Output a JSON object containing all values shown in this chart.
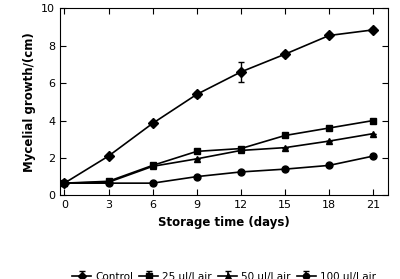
{
  "x": [
    0,
    3,
    6,
    9,
    12,
    15,
    18,
    21
  ],
  "control": [
    0.65,
    2.1,
    3.85,
    5.4,
    6.6,
    7.55,
    8.55,
    8.85
  ],
  "control_err": [
    0,
    0,
    0,
    0.15,
    0.55,
    0.12,
    0.1,
    0.08
  ],
  "dose25": [
    0.65,
    0.75,
    1.6,
    2.35,
    2.5,
    3.2,
    3.6,
    4.0
  ],
  "dose25_err": [
    0,
    0,
    0,
    0,
    0,
    0,
    0,
    0
  ],
  "dose50": [
    0.65,
    0.7,
    1.55,
    1.95,
    2.4,
    2.55,
    2.9,
    3.3
  ],
  "dose50_err": [
    0,
    0,
    0,
    0,
    0,
    0,
    0,
    0
  ],
  "dose100": [
    0.65,
    0.65,
    0.65,
    1.0,
    1.25,
    1.4,
    1.6,
    2.1
  ],
  "dose100_err": [
    0,
    0,
    0,
    0,
    0,
    0,
    0,
    0
  ],
  "xlabel": "Storage time (days)",
  "ylabel": "Mycelial growth/(cm)",
  "ylim": [
    0,
    10
  ],
  "yticks": [
    0,
    2,
    4,
    6,
    8,
    10
  ],
  "xticks": [
    0,
    3,
    6,
    9,
    12,
    15,
    18,
    21
  ],
  "legend_labels": [
    "Control",
    "25 μl/l air",
    "50 μl/l air",
    "100 μl/l air"
  ],
  "line_color": "#000000",
  "bg_color": "#ffffff"
}
